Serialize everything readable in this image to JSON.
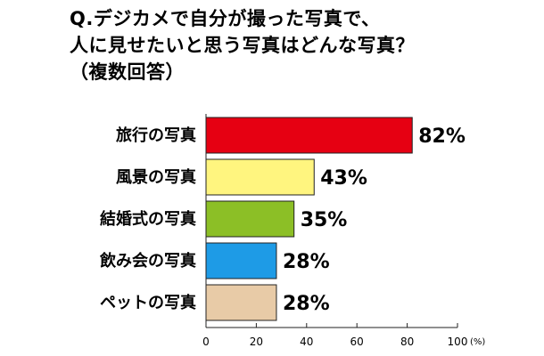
{
  "title_lines": [
    "Q.デジカメで自分が撮った写真で、",
    "人に見せたいと思う写真はどんな写真？",
    "（複数回答）"
  ],
  "chart_data": {
    "type": "bar",
    "orientation": "horizontal",
    "title": "Q.デジカメで自分が撮った写真で、人に見せたいと思う写真はどんな写真？（複数回答）",
    "categories": [
      "旅行の写真",
      "風景の写真",
      "結婚式の写真",
      "飲み会の写真",
      "ペットの写真"
    ],
    "values": [
      82,
      43,
      35,
      28,
      28
    ],
    "value_labels": [
      "82%",
      "43%",
      "35%",
      "28%",
      "28%"
    ],
    "bar_colors": [
      "#e60012",
      "#fff57f",
      "#8cbf26",
      "#1e9be6",
      "#e8cba7"
    ],
    "xlim": [
      0,
      100
    ],
    "xticks": [
      0,
      20,
      40,
      60,
      80,
      100
    ],
    "x_unit": "(%)",
    "grid": false
  }
}
